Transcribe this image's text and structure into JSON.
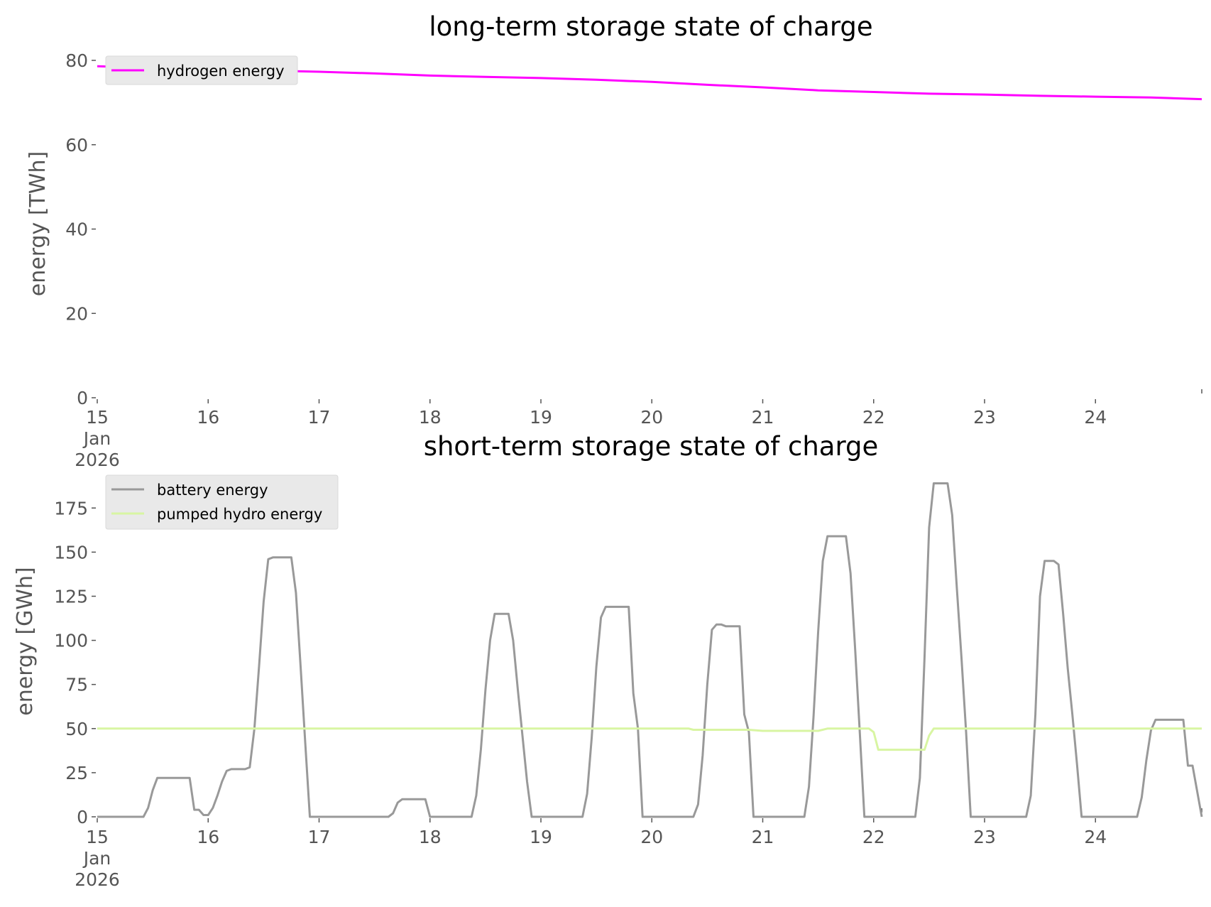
{
  "chart_data": [
    {
      "type": "line",
      "title": "long-term storage state of charge",
      "xlabel": "",
      "ylabel": "energy [TWh]",
      "xlim": [
        "2026-01-15T00:00",
        "2026-01-24T23:00"
      ],
      "ylim": [
        0,
        80
      ],
      "xticks": [
        "15",
        "16",
        "17",
        "18",
        "19",
        "20",
        "21",
        "22",
        "23",
        "24"
      ],
      "x_first_tick_extra": [
        "Jan",
        "2026"
      ],
      "yticks": [
        0,
        20,
        40,
        60,
        80
      ],
      "grid": false,
      "legend": "top-left",
      "series": [
        {
          "name": "hydrogen energy",
          "color": "#ff00ff",
          "points": [
            [
              "2026-01-15T00:00",
              78.6
            ],
            [
              "2026-01-15T12:00",
              78.2
            ],
            [
              "2026-01-16T00:00",
              77.9
            ],
            [
              "2026-01-16T12:00",
              77.6
            ],
            [
              "2026-01-17T00:00",
              77.3
            ],
            [
              "2026-01-17T12:00",
              76.9
            ],
            [
              "2026-01-18T00:00",
              76.4
            ],
            [
              "2026-01-18T12:00",
              76.1
            ],
            [
              "2026-01-19T00:00",
              75.8
            ],
            [
              "2026-01-19T12:00",
              75.4
            ],
            [
              "2026-01-20T00:00",
              74.9
            ],
            [
              "2026-01-20T12:00",
              74.2
            ],
            [
              "2026-01-21T00:00",
              73.6
            ],
            [
              "2026-01-21T12:00",
              72.9
            ],
            [
              "2026-01-22T00:00",
              72.5
            ],
            [
              "2026-01-22T12:00",
              72.1
            ],
            [
              "2026-01-23T00:00",
              71.9
            ],
            [
              "2026-01-23T12:00",
              71.6
            ],
            [
              "2026-01-24T00:00",
              71.4
            ],
            [
              "2026-01-24T12:00",
              71.2
            ],
            [
              "2026-01-24T23:00",
              70.8
            ]
          ]
        }
      ]
    },
    {
      "type": "line",
      "title": "short-term storage state of charge",
      "xlabel": "",
      "ylabel": "energy [GWh]",
      "xlim": [
        "2026-01-15T00:00",
        "2026-01-24T23:00"
      ],
      "ylim": [
        0,
        190
      ],
      "xticks": [
        "15",
        "16",
        "17",
        "18",
        "19",
        "20",
        "21",
        "22",
        "23",
        "24"
      ],
      "x_first_tick_extra": [
        "Jan",
        "2026"
      ],
      "yticks": [
        0,
        25,
        50,
        75,
        100,
        125,
        150,
        175
      ],
      "grid": false,
      "legend": "top-left",
      "series": [
        {
          "name": "battery energy",
          "color": "#999999",
          "points": [
            [
              "2026-01-15T00:00",
              0
            ],
            [
              "2026-01-15T10:00",
              0
            ],
            [
              "2026-01-15T11:00",
              5
            ],
            [
              "2026-01-15T12:00",
              15
            ],
            [
              "2026-01-15T13:00",
              22
            ],
            [
              "2026-01-15T20:00",
              22
            ],
            [
              "2026-01-15T21:00",
              4
            ],
            [
              "2026-01-15T22:00",
              4
            ],
            [
              "2026-01-15T23:00",
              1
            ],
            [
              "2026-01-16T00:00",
              1
            ],
            [
              "2026-01-16T01:00",
              5
            ],
            [
              "2026-01-16T02:00",
              12
            ],
            [
              "2026-01-16T03:00",
              20
            ],
            [
              "2026-01-16T04:00",
              26
            ],
            [
              "2026-01-16T05:00",
              27
            ],
            [
              "2026-01-16T08:00",
              27
            ],
            [
              "2026-01-16T09:00",
              28
            ],
            [
              "2026-01-16T10:00",
              50
            ],
            [
              "2026-01-16T11:00",
              85
            ],
            [
              "2026-01-16T12:00",
              122
            ],
            [
              "2026-01-16T13:00",
              146
            ],
            [
              "2026-01-16T14:00",
              147
            ],
            [
              "2026-01-16T18:00",
              147
            ],
            [
              "2026-01-16T19:00",
              127
            ],
            [
              "2026-01-16T20:00",
              85
            ],
            [
              "2026-01-16T21:00",
              42
            ],
            [
              "2026-01-16T22:00",
              0
            ],
            [
              "2026-01-17T15:00",
              0
            ],
            [
              "2026-01-17T16:00",
              2
            ],
            [
              "2026-01-17T17:00",
              8
            ],
            [
              "2026-01-17T18:00",
              10
            ],
            [
              "2026-01-17T23:00",
              10
            ],
            [
              "2026-01-18T00:00",
              0
            ],
            [
              "2026-01-18T09:00",
              0
            ],
            [
              "2026-01-18T10:00",
              12
            ],
            [
              "2026-01-18T11:00",
              38
            ],
            [
              "2026-01-18T12:00",
              72
            ],
            [
              "2026-01-18T13:00",
              100
            ],
            [
              "2026-01-18T14:00",
              115
            ],
            [
              "2026-01-18T17:00",
              115
            ],
            [
              "2026-01-18T18:00",
              100
            ],
            [
              "2026-01-18T19:00",
              72
            ],
            [
              "2026-01-18T20:00",
              46
            ],
            [
              "2026-01-18T21:00",
              20
            ],
            [
              "2026-01-18T22:00",
              0
            ],
            [
              "2026-01-19T09:00",
              0
            ],
            [
              "2026-01-19T10:00",
              13
            ],
            [
              "2026-01-19T11:00",
              45
            ],
            [
              "2026-01-19T12:00",
              85
            ],
            [
              "2026-01-19T13:00",
              113
            ],
            [
              "2026-01-19T14:00",
              119
            ],
            [
              "2026-01-19T19:00",
              119
            ],
            [
              "2026-01-19T20:00",
              70
            ],
            [
              "2026-01-19T21:00",
              50
            ],
            [
              "2026-01-19T22:00",
              0
            ],
            [
              "2026-01-20T09:00",
              0
            ],
            [
              "2026-01-20T10:00",
              7
            ],
            [
              "2026-01-20T11:00",
              35
            ],
            [
              "2026-01-20T12:00",
              75
            ],
            [
              "2026-01-20T13:00",
              106
            ],
            [
              "2026-01-20T14:00",
              109
            ],
            [
              "2026-01-20T15:00",
              109
            ],
            [
              "2026-01-20T16:00",
              108
            ],
            [
              "2026-01-20T19:00",
              108
            ],
            [
              "2026-01-20T20:00",
              58
            ],
            [
              "2026-01-20T21:00",
              48
            ],
            [
              "2026-01-20T22:00",
              0
            ],
            [
              "2026-01-21T09:00",
              0
            ],
            [
              "2026-01-21T10:00",
              17
            ],
            [
              "2026-01-21T11:00",
              57
            ],
            [
              "2026-01-21T12:00",
              105
            ],
            [
              "2026-01-21T13:00",
              145
            ],
            [
              "2026-01-21T14:00",
              159
            ],
            [
              "2026-01-21T18:00",
              159
            ],
            [
              "2026-01-21T19:00",
              138
            ],
            [
              "2026-01-21T20:00",
              95
            ],
            [
              "2026-01-21T21:00",
              48
            ],
            [
              "2026-01-21T22:00",
              0
            ],
            [
              "2026-01-22T09:00",
              0
            ],
            [
              "2026-01-22T10:00",
              22
            ],
            [
              "2026-01-22T11:00",
              90
            ],
            [
              "2026-01-22T12:00",
              164
            ],
            [
              "2026-01-22T13:00",
              189
            ],
            [
              "2026-01-22T16:00",
              189
            ],
            [
              "2026-01-22T17:00",
              171
            ],
            [
              "2026-01-22T18:00",
              130
            ],
            [
              "2026-01-22T19:00",
              90
            ],
            [
              "2026-01-22T20:00",
              48
            ],
            [
              "2026-01-22T21:00",
              0
            ],
            [
              "2026-01-23T09:00",
              0
            ],
            [
              "2026-01-23T10:00",
              12
            ],
            [
              "2026-01-23T11:00",
              58
            ],
            [
              "2026-01-23T12:00",
              125
            ],
            [
              "2026-01-23T13:00",
              145
            ],
            [
              "2026-01-23T15:00",
              145
            ],
            [
              "2026-01-23T16:00",
              143
            ],
            [
              "2026-01-23T17:00",
              115
            ],
            [
              "2026-01-23T18:00",
              84
            ],
            [
              "2026-01-23T19:00",
              58
            ],
            [
              "2026-01-23T20:00",
              30
            ],
            [
              "2026-01-23T21:00",
              0
            ],
            [
              "2026-01-24T09:00",
              0
            ],
            [
              "2026-01-24T10:00",
              11
            ],
            [
              "2026-01-24T11:00",
              32
            ],
            [
              "2026-01-24T12:00",
              49
            ],
            [
              "2026-01-24T13:00",
              55
            ],
            [
              "2026-01-24T19:00",
              55
            ],
            [
              "2026-01-24T20:00",
              29
            ],
            [
              "2026-01-24T21:00",
              29
            ],
            [
              "2026-01-24T23:00",
              0
            ]
          ]
        },
        {
          "name": "pumped hydro energy",
          "color": "#d8f5a2",
          "points": [
            [
              "2026-01-15T00:00",
              50
            ],
            [
              "2026-01-20T08:00",
              50
            ],
            [
              "2026-01-20T09:00",
              49.3
            ],
            [
              "2026-01-20T21:00",
              49.3
            ],
            [
              "2026-01-21T00:00",
              48.7
            ],
            [
              "2026-01-21T12:00",
              48.7
            ],
            [
              "2026-01-21T14:00",
              50
            ],
            [
              "2026-01-21T23:00",
              50
            ],
            [
              "2026-01-22T00:00",
              48
            ],
            [
              "2026-01-22T01:00",
              38
            ],
            [
              "2026-01-22T11:00",
              38
            ],
            [
              "2026-01-22T12:00",
              46
            ],
            [
              "2026-01-22T13:00",
              50
            ],
            [
              "2026-01-24T23:00",
              50
            ]
          ]
        }
      ]
    }
  ]
}
